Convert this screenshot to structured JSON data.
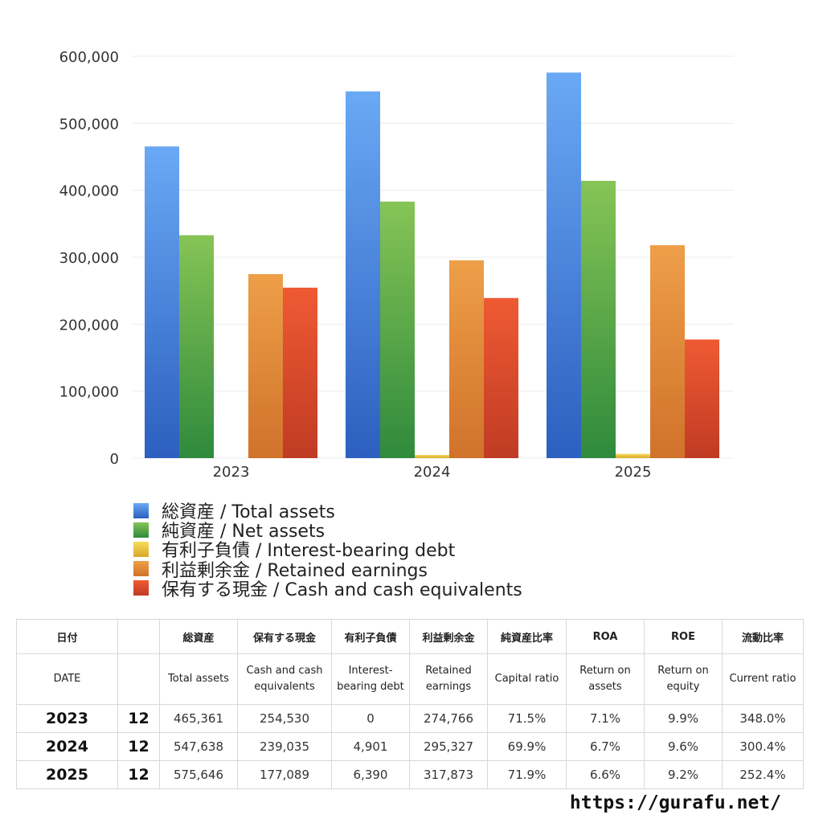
{
  "colors": {
    "total_assets": [
      "#6aa9f5",
      "#2c5fbf"
    ],
    "net_assets": [
      "#86c456",
      "#2f8a3c"
    ],
    "interest_bearing_debt": [
      "#f5dd5c",
      "#d9a72a"
    ],
    "retained_earnings": [
      "#ee9f48",
      "#d0722b"
    ],
    "cash": [
      "#ef5a33",
      "#c03b24"
    ]
  },
  "chart_data": {
    "type": "bar",
    "categories": [
      "2023",
      "2024",
      "2025"
    ],
    "ylim": [
      0,
      600000
    ],
    "yticks": [
      "0",
      "100,000",
      "200,000",
      "300,000",
      "400,000",
      "500,000",
      "600,000"
    ],
    "grid": true,
    "legend_position": "bottom-left",
    "series": [
      {
        "name": "総資産 / Total assets",
        "key": "total_assets",
        "values": [
          465361,
          547638,
          575646
        ]
      },
      {
        "name": "純資産 / Net assets",
        "key": "net_assets",
        "values": [
          332800,
          383000,
          414000
        ]
      },
      {
        "name": "有利子負債 / Interest-bearing debt",
        "key": "interest_bearing_debt",
        "values": [
          0,
          4901,
          6390
        ]
      },
      {
        "name": "利益剰余金 / Retained earnings",
        "key": "retained_earnings",
        "values": [
          274766,
          295327,
          317873
        ]
      },
      {
        "name": "保有する現金 /  Cash and cash equivalents",
        "key": "cash",
        "values": [
          254530,
          239035,
          177089
        ]
      }
    ]
  },
  "table": {
    "headers_jp": [
      "日付",
      "",
      "総資産",
      "保有する現金",
      "有利子負債",
      "利益剰余金",
      "純資産比率",
      "ROA",
      "ROE",
      "流動比率"
    ],
    "headers_en": [
      "DATE",
      "",
      "Total assets",
      "Cash and cash equivalents",
      "Interest-bearing debt",
      "Retained earnings",
      "Capital ratio",
      "Return on assets",
      "Return on equity",
      "Current ratio"
    ],
    "rows": [
      [
        "2023",
        "12",
        "465,361",
        "254,530",
        "0",
        "274,766",
        "71.5%",
        "7.1%",
        "9.9%",
        "348.0%"
      ],
      [
        "2024",
        "12",
        "547,638",
        "239,035",
        "4,901",
        "295,327",
        "69.9%",
        "6.7%",
        "9.6%",
        "300.4%"
      ],
      [
        "2025",
        "12",
        "575,646",
        "177,089",
        "6,390",
        "317,873",
        "71.9%",
        "6.6%",
        "9.2%",
        "252.4%"
      ]
    ]
  },
  "footer": {
    "url": "https://gurafu.net/"
  }
}
